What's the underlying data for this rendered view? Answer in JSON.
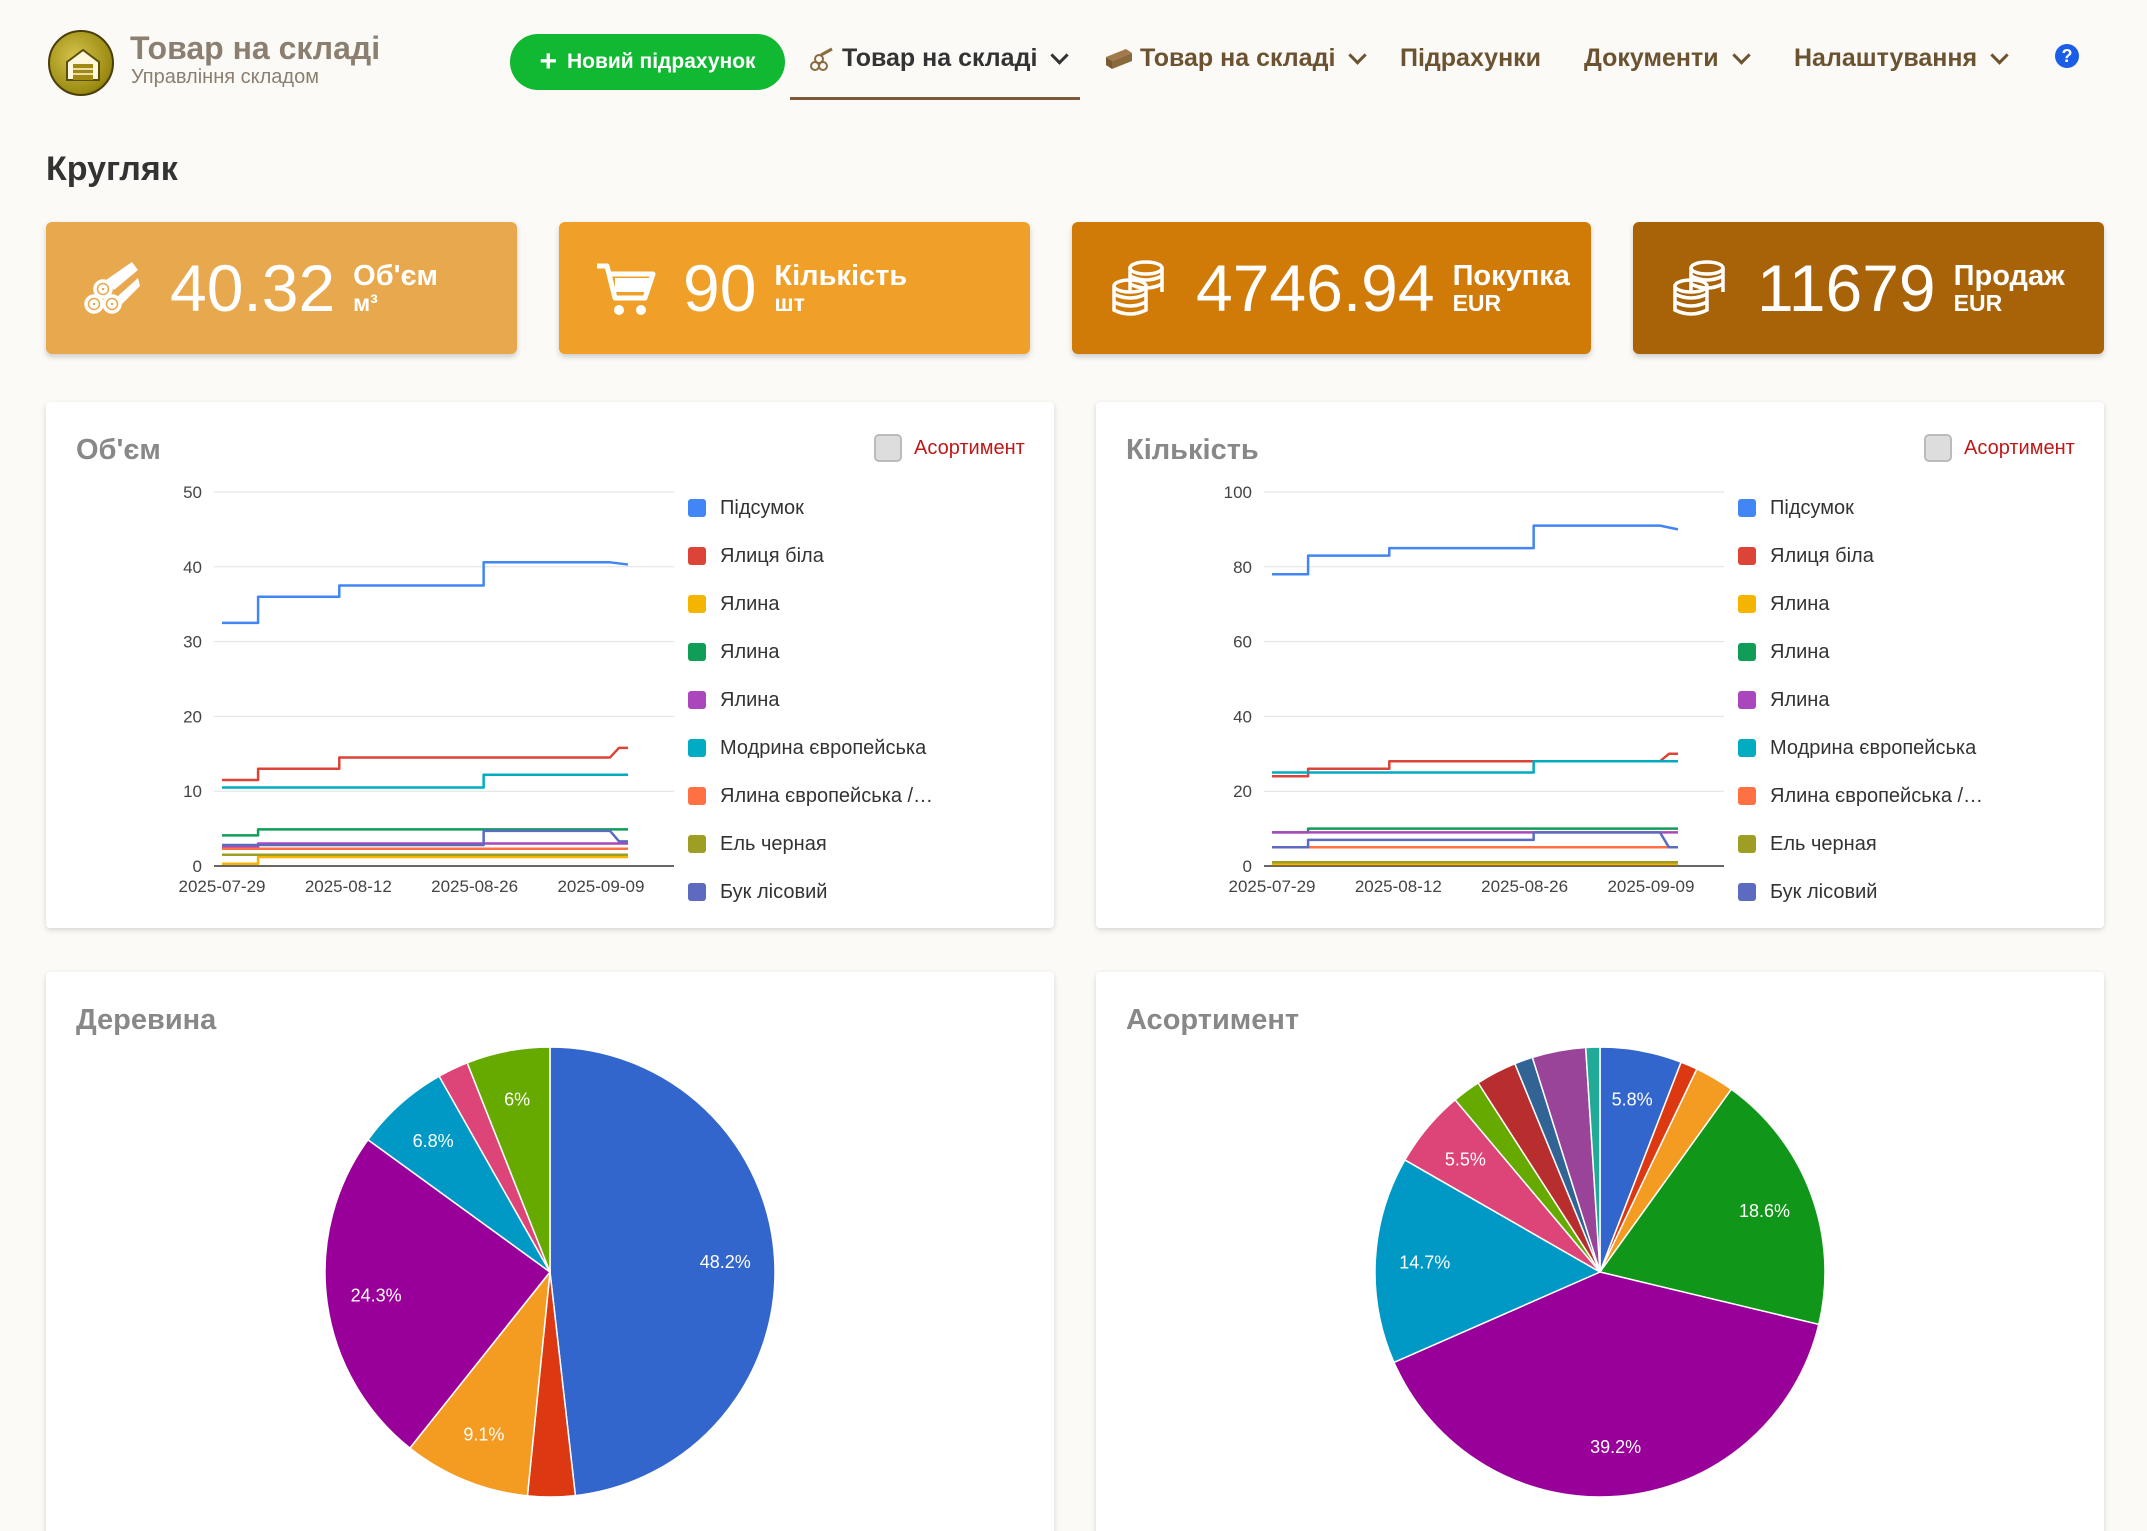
{
  "header": {
    "brand_title": "Товар на складі",
    "brand_subtitle": "Управління складом",
    "new_button_label": "Новий підрахунок",
    "nav": [
      {
        "label": "Товар на складі",
        "icon": "logs-icon",
        "dropdown": true,
        "active": true
      },
      {
        "label": "Товар на складі",
        "icon": "planks-icon",
        "dropdown": true,
        "active": false
      },
      {
        "label": "Підрахунки",
        "dropdown": false,
        "active": false
      },
      {
        "label": "Документи",
        "dropdown": true,
        "active": false
      },
      {
        "label": "Налаштування",
        "dropdown": true,
        "active": false
      }
    ],
    "help_icon": "?"
  },
  "page_title": "Кругляк",
  "stats": [
    {
      "value": "40.32",
      "label": "Об'єм",
      "unit": "м³",
      "icon": "logs-icon",
      "color": "#e8a84e"
    },
    {
      "value": "90",
      "label": "Кількість",
      "unit": "шт",
      "icon": "cart-icon",
      "color": "#f0a028"
    },
    {
      "value": "4746.94",
      "label": "Покупка",
      "unit": "EUR",
      "icon": "coins-icon",
      "color": "#d07a08"
    },
    {
      "value": "11679",
      "label": "Продаж",
      "unit": "EUR",
      "icon": "coins-icon",
      "color": "#a86208"
    }
  ],
  "panels": {
    "volume_title": "Об'єм",
    "quantity_title": "Кількість",
    "wood_title": "Деревина",
    "assortment_title": "Асортимент",
    "toggle_label": "Асортимент"
  },
  "legend": [
    {
      "name": "Підсумок",
      "color": "#4285f4"
    },
    {
      "name": "Ялиця біла",
      "color": "#db4437"
    },
    {
      "name": "Ялина",
      "color": "#f4b400"
    },
    {
      "name": "Ялина",
      "color": "#0f9d58"
    },
    {
      "name": "Ялина",
      "color": "#ab47bc"
    },
    {
      "name": "Модрина європейська",
      "color": "#00acc1"
    },
    {
      "name": "Ялина європейська /…",
      "color": "#ff7043"
    },
    {
      "name": "Ель черная",
      "color": "#9e9d24"
    },
    {
      "name": "Бук лісовий",
      "color": "#5c6bc0"
    }
  ],
  "chart_data": [
    {
      "type": "line",
      "title": "Об'єм",
      "x_ticks": [
        "2025-07-29",
        "2025-08-12",
        "2025-08-26",
        "2025-09-09"
      ],
      "x_domain": [
        "2025-07-29",
        "2025-09-12"
      ],
      "ylim": [
        0,
        50
      ],
      "y_ticks": [
        0,
        10,
        20,
        30,
        40,
        50
      ],
      "series": [
        {
          "name": "Підсумок",
          "color": "#4285f4",
          "points": [
            [
              "2025-07-29",
              32.5
            ],
            [
              "2025-08-02",
              32.5
            ],
            [
              "2025-08-02",
              36
            ],
            [
              "2025-08-11",
              36
            ],
            [
              "2025-08-11",
              37.5
            ],
            [
              "2025-08-27",
              37.5
            ],
            [
              "2025-08-27",
              40.6
            ],
            [
              "2025-09-10",
              40.6
            ],
            [
              "2025-09-12",
              40.3
            ]
          ]
        },
        {
          "name": "Ялиця біла",
          "color": "#db4437",
          "points": [
            [
              "2025-07-29",
              11.5
            ],
            [
              "2025-08-02",
              11.5
            ],
            [
              "2025-08-02",
              13
            ],
            [
              "2025-08-11",
              13
            ],
            [
              "2025-08-11",
              14.5
            ],
            [
              "2025-09-10",
              14.5
            ],
            [
              "2025-09-11",
              15.8
            ],
            [
              "2025-09-12",
              15.8
            ]
          ]
        },
        {
          "name": "Ялина",
          "color": "#f4b400",
          "points": [
            [
              "2025-07-29",
              0.3
            ],
            [
              "2025-08-02",
              0.3
            ],
            [
              "2025-08-02",
              1.2
            ],
            [
              "2025-09-12",
              1.2
            ]
          ]
        },
        {
          "name": "Ялина",
          "color": "#0f9d58",
          "points": [
            [
              "2025-07-29",
              4.1
            ],
            [
              "2025-08-02",
              4.1
            ],
            [
              "2025-08-02",
              4.9
            ],
            [
              "2025-09-12",
              4.9
            ]
          ]
        },
        {
          "name": "Ялина",
          "color": "#ab47bc",
          "points": [
            [
              "2025-07-29",
              2.5
            ],
            [
              "2025-08-02",
              2.5
            ],
            [
              "2025-08-02",
              3.0
            ],
            [
              "2025-09-12",
              3.0
            ]
          ]
        },
        {
          "name": "Модрина європейська",
          "color": "#00acc1",
          "points": [
            [
              "2025-07-29",
              10.5
            ],
            [
              "2025-08-27",
              10.5
            ],
            [
              "2025-08-27",
              12.2
            ],
            [
              "2025-09-12",
              12.2
            ]
          ]
        },
        {
          "name": "Ялина європейська /…",
          "color": "#ff7043",
          "points": [
            [
              "2025-07-29",
              2.3
            ],
            [
              "2025-09-12",
              2.3
            ]
          ]
        },
        {
          "name": "Ель черная",
          "color": "#9e9d24",
          "points": [
            [
              "2025-07-29",
              1.5
            ],
            [
              "2025-09-12",
              1.5
            ]
          ]
        },
        {
          "name": "Бук лісовий",
          "color": "#5c6bc0",
          "points": [
            [
              "2025-07-29",
              2.8
            ],
            [
              "2025-08-27",
              2.8
            ],
            [
              "2025-08-27",
              4.7
            ],
            [
              "2025-09-10",
              4.7
            ],
            [
              "2025-09-11",
              3.3
            ],
            [
              "2025-09-12",
              3.3
            ]
          ]
        }
      ]
    },
    {
      "type": "line",
      "title": "Кількість",
      "x_ticks": [
        "2025-07-29",
        "2025-08-12",
        "2025-08-26",
        "2025-09-09"
      ],
      "x_domain": [
        "2025-07-29",
        "2025-09-12"
      ],
      "ylim": [
        0,
        100
      ],
      "y_ticks": [
        0,
        20,
        40,
        60,
        80,
        100
      ],
      "series": [
        {
          "name": "Підсумок",
          "color": "#4285f4",
          "points": [
            [
              "2025-07-29",
              78
            ],
            [
              "2025-08-02",
              78
            ],
            [
              "2025-08-02",
              83
            ],
            [
              "2025-08-11",
              83
            ],
            [
              "2025-08-11",
              85
            ],
            [
              "2025-08-27",
              85
            ],
            [
              "2025-08-27",
              91
            ],
            [
              "2025-09-10",
              91
            ],
            [
              "2025-09-12",
              90
            ]
          ]
        },
        {
          "name": "Ялиця біла",
          "color": "#db4437",
          "points": [
            [
              "2025-07-29",
              24
            ],
            [
              "2025-08-02",
              24
            ],
            [
              "2025-08-02",
              26
            ],
            [
              "2025-08-11",
              26
            ],
            [
              "2025-08-11",
              28
            ],
            [
              "2025-09-10",
              28
            ],
            [
              "2025-09-11",
              30
            ],
            [
              "2025-09-12",
              30
            ]
          ]
        },
        {
          "name": "Ялина",
          "color": "#f4b400",
          "points": [
            [
              "2025-07-29",
              0.5
            ],
            [
              "2025-09-12",
              0.5
            ]
          ]
        },
        {
          "name": "Ялина",
          "color": "#0f9d58",
          "points": [
            [
              "2025-07-29",
              9
            ],
            [
              "2025-08-02",
              9
            ],
            [
              "2025-08-02",
              10
            ],
            [
              "2025-09-12",
              10
            ]
          ]
        },
        {
          "name": "Ялина",
          "color": "#ab47bc",
          "points": [
            [
              "2025-07-29",
              9
            ],
            [
              "2025-09-12",
              9
            ]
          ]
        },
        {
          "name": "Модрина європейська",
          "color": "#00acc1",
          "points": [
            [
              "2025-07-29",
              25
            ],
            [
              "2025-08-27",
              25
            ],
            [
              "2025-08-27",
              28
            ],
            [
              "2025-09-12",
              28
            ]
          ]
        },
        {
          "name": "Ялина європейська /…",
          "color": "#ff7043",
          "points": [
            [
              "2025-07-29",
              5
            ],
            [
              "2025-09-12",
              5
            ]
          ]
        },
        {
          "name": "Ель черная",
          "color": "#9e9d24",
          "points": [
            [
              "2025-07-29",
              1
            ],
            [
              "2025-09-12",
              1
            ]
          ]
        },
        {
          "name": "Бук лісовий",
          "color": "#5c6bc0",
          "points": [
            [
              "2025-07-29",
              5
            ],
            [
              "2025-08-02",
              5
            ],
            [
              "2025-08-02",
              7
            ],
            [
              "2025-08-27",
              7
            ],
            [
              "2025-08-27",
              9
            ],
            [
              "2025-09-10",
              9
            ],
            [
              "2025-09-11",
              5
            ],
            [
              "2025-09-12",
              5
            ]
          ]
        }
      ]
    },
    {
      "type": "pie",
      "title": "Деревина",
      "slices": [
        {
          "value": 48.2,
          "label": "48.2%",
          "color": "#3366cc"
        },
        {
          "value": 3.4,
          "label": "",
          "color": "#dc3912"
        },
        {
          "value": 9.1,
          "label": "9.1%",
          "color": "#f49b22"
        },
        {
          "value": 24.3,
          "label": "24.3%",
          "color": "#990099"
        },
        {
          "value": 6.8,
          "label": "6.8%",
          "color": "#0099c6"
        },
        {
          "value": 2.2,
          "label": "",
          "color": "#dd4477"
        },
        {
          "value": 6.0,
          "label": "6%",
          "color": "#66aa00"
        }
      ]
    },
    {
      "type": "pie",
      "title": "Асортимент",
      "slices": [
        {
          "value": 5.8,
          "label": "5.8%",
          "color": "#3366cc"
        },
        {
          "value": 1.2,
          "label": "",
          "color": "#dc3912"
        },
        {
          "value": 2.8,
          "label": "",
          "color": "#f49b22"
        },
        {
          "value": 18.6,
          "label": "18.6%",
          "color": "#109618"
        },
        {
          "value": 39.2,
          "label": "39.2%",
          "color": "#990099"
        },
        {
          "value": 14.7,
          "label": "14.7%",
          "color": "#0099c6"
        },
        {
          "value": 5.5,
          "label": "5.5%",
          "color": "#dd4477"
        },
        {
          "value": 2.0,
          "label": "",
          "color": "#66aa00"
        },
        {
          "value": 2.9,
          "label": "",
          "color": "#b82e2e"
        },
        {
          "value": 1.3,
          "label": "",
          "color": "#316395"
        },
        {
          "value": 3.8,
          "label": "",
          "color": "#994499"
        },
        {
          "value": 1.0,
          "label": "",
          "color": "#22aa99"
        }
      ]
    }
  ]
}
